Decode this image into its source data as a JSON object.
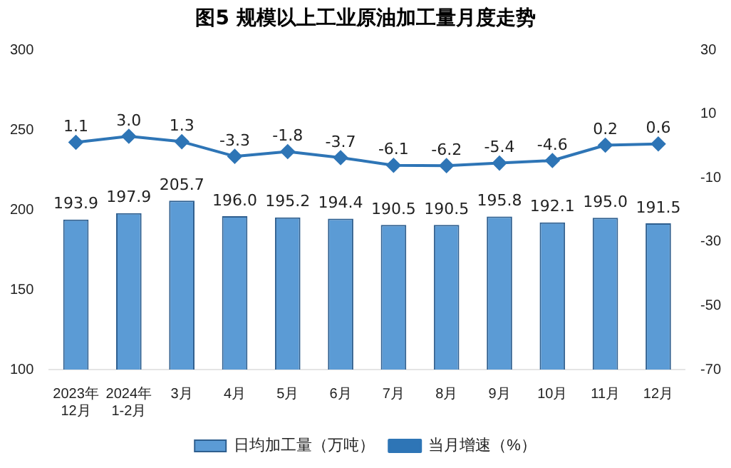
{
  "chart_data": {
    "type": "bar",
    "title": "图5  规模以上工业原油加工量月度走势",
    "categories": [
      "2023年\n12月",
      "2024年\n1-2月",
      "3月",
      "4月",
      "5月",
      "6月",
      "7月",
      "8月",
      "9月",
      "10月",
      "11月",
      "12月"
    ],
    "series": [
      {
        "name": "日均加工量（万吨）",
        "color": "#5b9bd5",
        "values": [
          193.9,
          197.9,
          205.7,
          196.0,
          195.2,
          194.4,
          190.5,
          190.5,
          195.8,
          192.1,
          195.0,
          191.5
        ],
        "value_labels": [
          "193.9",
          "197.9",
          "205.7",
          "196.0",
          "195.2",
          "194.4",
          "190.5",
          "190.5",
          "195.8",
          "192.1",
          "195.0",
          "191.5"
        ]
      },
      {
        "name": "当月增速（%）",
        "type": "line",
        "axis": "y2",
        "color": "#2e75b6",
        "values": [
          1.1,
          3.0,
          1.3,
          -3.3,
          -1.8,
          -3.7,
          -6.1,
          -6.2,
          -5.4,
          -4.6,
          0.2,
          0.6
        ],
        "value_labels": [
          "1.1",
          "3.0",
          "1.3",
          "-3.3",
          "-1.8",
          "-3.7",
          "-6.1",
          "-6.2",
          "-5.4",
          "-4.6",
          "0.2",
          "0.6"
        ]
      }
    ],
    "ylim": [
      100,
      300
    ],
    "yticks": [
      100,
      150,
      200,
      250,
      300
    ],
    "y2lim": [
      -70,
      30
    ],
    "y2ticks": [
      -70,
      -50,
      -30,
      -10,
      10,
      30
    ],
    "grid": false,
    "legend": "bottom",
    "marker": "diamond",
    "line_style": "solid"
  }
}
